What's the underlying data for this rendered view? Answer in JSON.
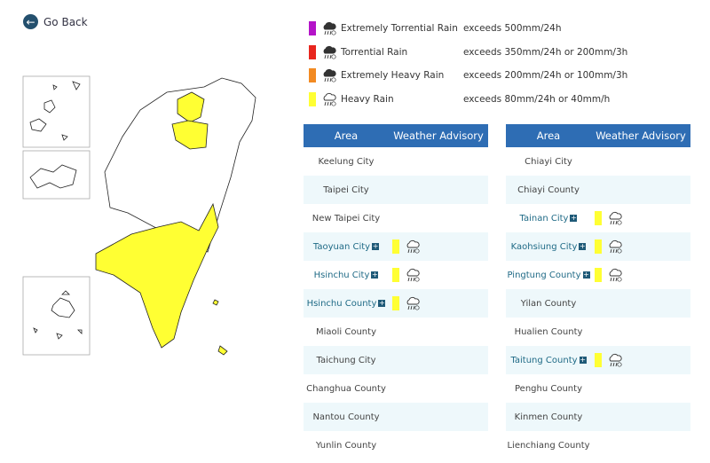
{
  "back": "Go Back",
  "legend": [
    {
      "name": "Extremely Torrential Rain",
      "description": "exceeds 500mm/24h",
      "color": "#b414c8"
    },
    {
      "name": "Torrential Rain",
      "description": "exceeds 350mm/24h or 200mm/3h",
      "color": "#e8261e"
    },
    {
      "name": "Extremely Heavy Rain",
      "description": "exceeds 200mm/24h or 100mm/3h",
      "color": "#f28a22"
    },
    {
      "name": "Heavy Rain",
      "description": "exceeds 80mm/24h or 40mm/h",
      "color": "#ffff33"
    }
  ],
  "tables": [
    {
      "header": [
        "Area",
        "Weather Advisory"
      ],
      "rows": [
        {
          "area": "Keelung City"
        },
        {
          "area": "Taipei City"
        },
        {
          "area": "New Taipei City"
        },
        {
          "area": "Taoyuan City",
          "color": "#ffff33"
        },
        {
          "area": "Hsinchu City",
          "color": "#ffff33"
        },
        {
          "area": "Hsinchu County",
          "color": "#ffff33"
        },
        {
          "area": "Miaoli County"
        },
        {
          "area": "Taichung City"
        },
        {
          "area": "Changhua County"
        },
        {
          "area": "Nantou County"
        },
        {
          "area": "Yunlin County"
        }
      ]
    },
    {
      "header": [
        "Area",
        "Weather Advisory"
      ],
      "rows": [
        {
          "area": "Chiayi City"
        },
        {
          "area": "Chiayi County"
        },
        {
          "area": "Tainan City",
          "color": "#ffff33"
        },
        {
          "area": "Kaohsiung City",
          "color": "#ffff33"
        },
        {
          "area": "Pingtung County",
          "color": "#ffff33"
        },
        {
          "area": "Yilan County"
        },
        {
          "area": "Hualien County"
        },
        {
          "area": "Taitung County",
          "color": "#ffff33"
        },
        {
          "area": "Penghu County"
        },
        {
          "area": "Kinmen County"
        },
        {
          "area": "Lienchiang County"
        }
      ]
    }
  ]
}
